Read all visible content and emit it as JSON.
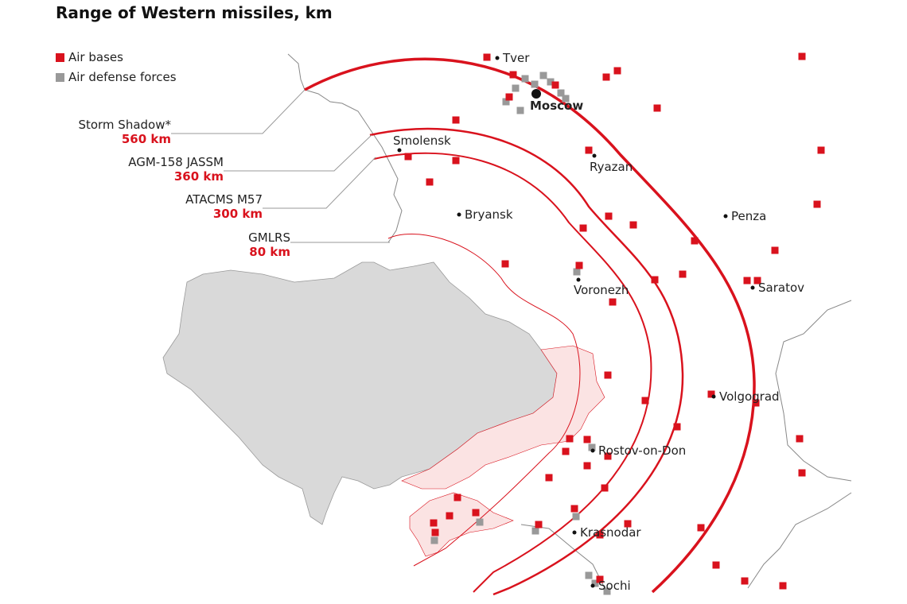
{
  "title": "Range of Western missiles, km",
  "legend": [
    {
      "label": "Air bases",
      "color": "#d9121d"
    },
    {
      "label": "Air defense forces",
      "color": "#999999"
    }
  ],
  "weapons": [
    {
      "name": "Storm Shadow*",
      "range": "560 km"
    },
    {
      "name": "AGM-158 JASSM",
      "range": "360 km"
    },
    {
      "name": "ATACMS M57",
      "range": "300 km"
    },
    {
      "name": "GMLRS",
      "range": "80 km"
    }
  ],
  "cities": [
    "Tver",
    "Moscow",
    "Smolensk",
    "Ryazan",
    "Bryansk",
    "Penza",
    "Voronezh",
    "Saratov",
    "Volgograd",
    "Rostov-on-Don",
    "Krasnodar",
    "Sochi"
  ],
  "colors": {
    "range_line": "#d9121d",
    "ukraine": "#d9d9d9",
    "occupied": "#fbe3e3",
    "border": "#888888"
  }
}
